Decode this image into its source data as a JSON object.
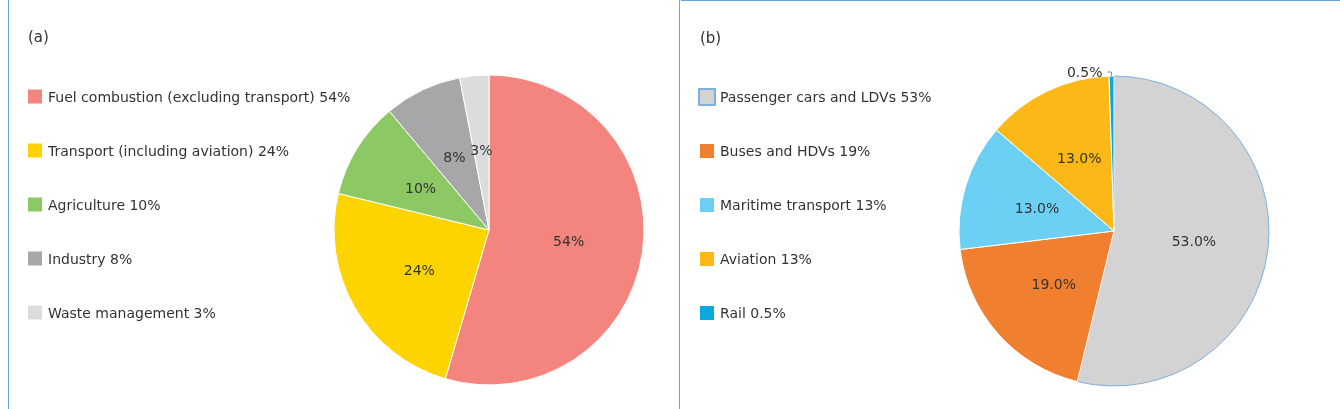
{
  "chart_data": [
    {
      "type": "pie",
      "title": "(a)",
      "categories": [
        "Fuel combustion (excluding transport) 54%",
        "Transport (including aviation) 24%",
        "Agriculture 10%",
        "Industry 8%",
        "Waste management 3%"
      ],
      "values": [
        54,
        24,
        10,
        8,
        3
      ],
      "colors": [
        "#f4857e",
        "#fdd300",
        "#8cc863",
        "#a7a7a9",
        "#dcdcdc"
      ],
      "value_labels": [
        "54%",
        "24%",
        "10%",
        "8%",
        "3%"
      ],
      "legend": "left"
    },
    {
      "type": "pie",
      "title": "(b)",
      "categories": [
        "Passenger cars and LDVs 53%",
        "Buses and HDVs 19%",
        "Maritime transport 13%",
        "Aviation 13%",
        "Rail 0.5%"
      ],
      "values": [
        53,
        19,
        13,
        13,
        0.5
      ],
      "colors": [
        "#d3d3d3",
        "#f08030",
        "#6ccff4",
        "#fbb816",
        "#0aa9e0"
      ],
      "value_labels": [
        "53.0%",
        "19.0%",
        "13.0%",
        "13.0%",
        "0.5%"
      ],
      "legend": "left"
    }
  ]
}
